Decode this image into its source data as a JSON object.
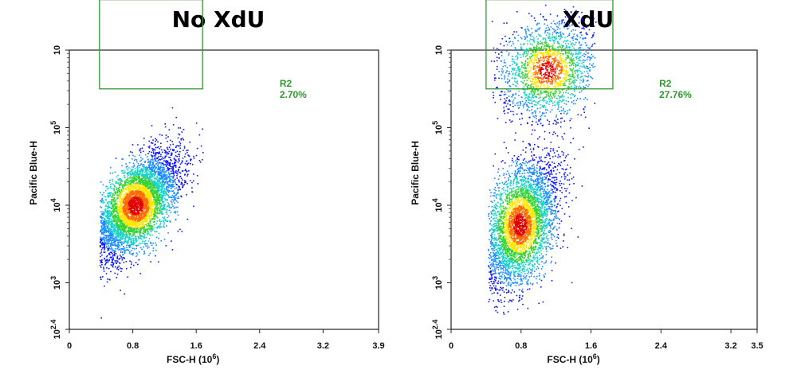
{
  "chart_data": [
    {
      "type": "scatter",
      "title": "No XdU",
      "xlabel": "FSC-H (10⁶)",
      "ylabel": "Pacific Blue-H",
      "x_scale": "linear",
      "y_scale": "log",
      "xlim": [
        0,
        3.9
      ],
      "ylim_log10": [
        2.4,
        6
      ],
      "x_ticks": [
        "0",
        "0.8",
        "1.6",
        "2.4",
        "3.2",
        "3.9"
      ],
      "x_tick_values": [
        0,
        0.8,
        1.6,
        2.4,
        3.2,
        3.9
      ],
      "y_ticks": [
        {
          "base": "10",
          "exp": "2.4",
          "log": 2.4
        },
        {
          "base": "10",
          "exp": "3",
          "log": 3
        },
        {
          "base": "10",
          "exp": "4",
          "log": 4
        },
        {
          "base": "10",
          "exp": "5",
          "log": 5
        },
        {
          "base": "10",
          "exp": "",
          "log": 6
        }
      ],
      "gate": {
        "name": "R2",
        "percent": "2.70%",
        "x_range": [
          0.38,
          1.68
        ],
        "log10_y_range": [
          5.5,
          6.65
        ]
      },
      "populations": [
        {
          "x_mean": 0.83,
          "log10_y_mean": 4.0,
          "sx": 0.28,
          "sy": 0.34,
          "corr": 0.62,
          "weight": 1.0,
          "x_range": [
            0.38,
            1.68
          ],
          "log10_y_range": [
            2.55,
            5.75
          ]
        }
      ],
      "density_colormap": [
        "#0a14ff",
        "#1a8cff",
        "#16d2c8",
        "#34d233",
        "#ffe600",
        "#ff6a00",
        "#e00000"
      ]
    },
    {
      "type": "scatter",
      "title": "XdU",
      "xlabel": "FSC-H (10⁶)",
      "ylabel": "Pacific Blue-H",
      "x_scale": "linear",
      "y_scale": "log",
      "xlim": [
        0,
        3.5
      ],
      "ylim_log10": [
        2.4,
        6
      ],
      "x_ticks": [
        "0",
        "0.8",
        "1.6",
        "2.4",
        "3.2",
        "3.5"
      ],
      "x_tick_values": [
        0,
        0.8,
        1.6,
        2.4,
        3.2,
        3.5
      ],
      "y_ticks": [
        {
          "base": "10",
          "exp": "2.4",
          "log": 2.4
        },
        {
          "base": "10",
          "exp": "3",
          "log": 3
        },
        {
          "base": "10",
          "exp": "4",
          "log": 4
        },
        {
          "base": "10",
          "exp": "5",
          "log": 5
        },
        {
          "base": "10",
          "exp": "",
          "log": 6
        }
      ],
      "gate": {
        "name": "R2",
        "percent": "27.76%",
        "x_range": [
          0.4,
          1.85
        ],
        "log10_y_range": [
          5.5,
          6.65
        ]
      },
      "populations": [
        {
          "x_mean": 0.78,
          "log10_y_mean": 3.75,
          "sx": 0.22,
          "sy": 0.42,
          "corr": 0.45,
          "weight": 0.68,
          "x_range": [
            0.42,
            1.6
          ],
          "log10_y_range": [
            2.55,
            5.2
          ]
        },
        {
          "x_mean": 1.1,
          "log10_y_mean": 5.75,
          "sx": 0.28,
          "sy": 0.32,
          "corr": 0.2,
          "weight": 0.32,
          "x_range": [
            0.45,
            1.65
          ],
          "log10_y_range": [
            4.3,
            6.6
          ]
        }
      ],
      "density_colormap": [
        "#0a14ff",
        "#1a8cff",
        "#16d2c8",
        "#34d233",
        "#ffe600",
        "#ff6a00",
        "#e00000"
      ]
    }
  ]
}
